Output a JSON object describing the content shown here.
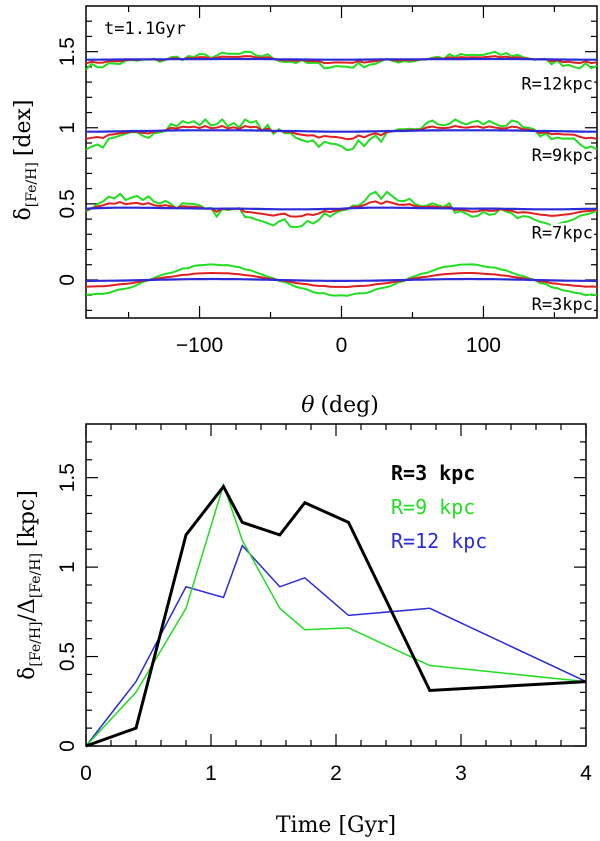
{
  "chart_data": [
    {
      "type": "line",
      "annotation": "t=1.1Gyr",
      "xlabel": "θ (deg)",
      "ylabel": "δ[Fe/H] [dex]",
      "ylabel_main": "δ",
      "ylabel_sub": "[Fe/H]",
      "ylabel_unit": "[dex]",
      "xlim": [
        -180,
        180
      ],
      "ylim": [
        -0.25,
        1.8
      ],
      "x_ticks": [
        "−100",
        "0",
        "100"
      ],
      "x_tick_values": [
        -100,
        0,
        100
      ],
      "y_ticks": [
        "0",
        "0.5",
        "1",
        "1.5"
      ],
      "y_tick_values": [
        0,
        0.5,
        1,
        1.5
      ],
      "colors": {
        "inner": "#2b2bd8",
        "middle": "#e02020",
        "outer": "#22dd22"
      },
      "bands": [
        {
          "label": "R=12kpc",
          "offset": 1.45,
          "pattern": "bumps-2",
          "phase": -85,
          "amplitude": 0.08,
          "noise": 0.02
        },
        {
          "label": "R=9kpc",
          "offset": 0.98,
          "pattern": "bumps-2",
          "phase": -90,
          "amplitude": 0.17,
          "noise": 0.03
        },
        {
          "label": "R=7kpc",
          "offset": 0.47,
          "pattern": "bumps-2",
          "phase": 45,
          "amplitude": 0.17,
          "noise": 0.03
        },
        {
          "label": "R=3kpc",
          "offset": 0.0,
          "pattern": "smooth-2",
          "phase": 90,
          "amplitude": 0.2,
          "noise": 0.005
        }
      ]
    },
    {
      "type": "line",
      "xlabel": "Time [Gyr]",
      "ylabel": "δ[Fe/H]/Δ[Fe/H] [kpc]",
      "ylabel_d1": "δ",
      "ylabel_d1_sub": "[Fe/H]",
      "ylabel_slash": "/Δ",
      "ylabel_d2_sub": "[Fe/H]",
      "ylabel_unit": "[kpc]",
      "xlim": [
        0,
        4
      ],
      "ylim": [
        0,
        1.8
      ],
      "x_ticks": [
        "0",
        "1",
        "2",
        "3",
        "4"
      ],
      "x_tick_values": [
        0,
        1,
        2,
        3,
        4
      ],
      "y_ticks": [
        "0",
        "0.5",
        "1",
        "1.5"
      ],
      "y_tick_values": [
        0,
        0.5,
        1,
        1.5
      ],
      "legend_position": "top-right",
      "series": [
        {
          "name": "R=3 kpc",
          "color": "#000000",
          "bold": true,
          "x": [
            0,
            0.4,
            0.8,
            1.1,
            1.25,
            1.55,
            1.75,
            2.1,
            2.75,
            4.0
          ],
          "y": [
            0,
            0.1,
            1.18,
            1.45,
            1.25,
            1.18,
            1.36,
            1.25,
            0.31,
            0.36
          ]
        },
        {
          "name": "R=9 kpc",
          "color": "#22dd22",
          "bold": false,
          "x": [
            0,
            0.4,
            0.8,
            1.1,
            1.25,
            1.55,
            1.75,
            2.1,
            2.75,
            4.0
          ],
          "y": [
            0,
            0.3,
            0.77,
            1.46,
            1.15,
            0.77,
            0.65,
            0.66,
            0.45,
            0.36
          ]
        },
        {
          "name": "R=12 kpc",
          "color": "#2b2bd8",
          "bold": false,
          "x": [
            0,
            0.4,
            0.8,
            1.1,
            1.25,
            1.55,
            1.75,
            2.1,
            2.75,
            4.0
          ],
          "y": [
            0,
            0.36,
            0.89,
            0.83,
            1.12,
            0.89,
            0.94,
            0.73,
            0.77,
            0.36
          ]
        }
      ]
    }
  ]
}
